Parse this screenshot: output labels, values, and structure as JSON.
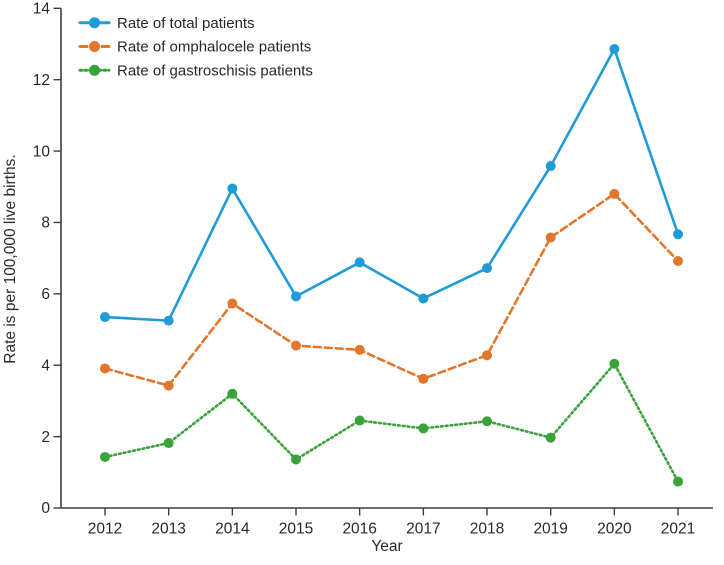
{
  "chart_data": {
    "type": "line",
    "title": "",
    "xlabel": "Year",
    "ylabel": "Rate is per 100,000 live births.",
    "x": [
      2012,
      2013,
      2014,
      2015,
      2016,
      2017,
      2018,
      2019,
      2020,
      2021
    ],
    "ylim": [
      0,
      14
    ],
    "yticks": [
      0,
      2,
      4,
      6,
      8,
      10,
      12,
      14
    ],
    "grid": false,
    "legend_position": "top-left",
    "background": "#ffffff",
    "axis_color": "#3d3d3d",
    "text_color": "#2b2728",
    "series": [
      {
        "name": "Rate of total patients",
        "color": "#1f9bd8",
        "line_style": "solid",
        "marker": "circle",
        "values": [
          5.35,
          5.25,
          8.95,
          5.93,
          6.88,
          5.87,
          6.72,
          9.58,
          12.86,
          7.67
        ]
      },
      {
        "name": "Rate of omphalocele patients",
        "color": "#e2762d",
        "line_style": "dashed",
        "marker": "circle",
        "values": [
          3.91,
          3.43,
          5.73,
          4.55,
          4.43,
          3.62,
          4.28,
          7.58,
          8.8,
          6.92
        ]
      },
      {
        "name": "Rate of gastroschisis patients",
        "color": "#3aa23a",
        "line_style": "dotted",
        "marker": "circle",
        "values": [
          1.43,
          1.82,
          3.2,
          1.36,
          2.45,
          2.23,
          2.43,
          1.97,
          4.04,
          0.74
        ]
      }
    ]
  }
}
